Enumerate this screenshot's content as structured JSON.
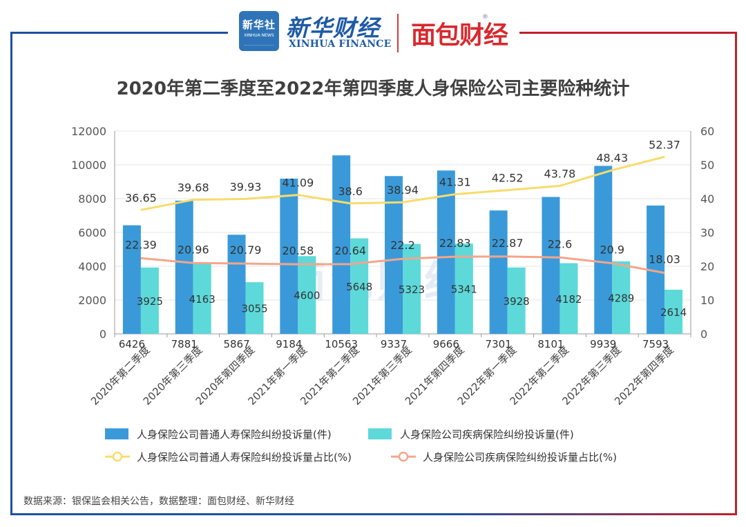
{
  "header": {
    "xinhua_badge_cn": "新华社",
    "xinhua_badge_en": "XINHUA NEWS",
    "xinhua_finance_cn": "新华财经",
    "xinhua_finance_en": "XINHUA FINANCE",
    "mianbao_logo": "面包财经",
    "registered_mark": "®"
  },
  "watermark": "面包财经",
  "source": "数据来源：银保监会相关公告，数据整理：面包财经、新华财经",
  "colors": {
    "bar_life": "#3a9ad9",
    "bar_disease": "#5dd9da",
    "line_life": "#f7dc6b",
    "line_disease": "#f4a58a",
    "frame_left": "#1e4fa2",
    "frame_right": "#c0202a",
    "grid": "#e4e4e4"
  },
  "chart_data": {
    "type": "bar+line",
    "title": "2020年第二季度至2022年第四季度人身保险公司主要险种统计",
    "categories": [
      "2020年第二季度",
      "2020年第三季度",
      "2020年第四季度",
      "2021年第一季度",
      "2021年第二季度",
      "2021年第三季度",
      "2021年第四季度",
      "2022年第一季度",
      "2022年第二季度",
      "2022年第三季度",
      "2022年第四季度"
    ],
    "y_left": {
      "min": 0,
      "max": 12000,
      "ticks": [
        0,
        2000,
        4000,
        6000,
        8000,
        10000,
        12000
      ]
    },
    "y_right": {
      "min": 0,
      "max": 60,
      "ticks": [
        0,
        10,
        20,
        30,
        40,
        50,
        60
      ]
    },
    "series": [
      {
        "name": "人身保险公司普通人寿保险纠纷投诉量(件)",
        "type": "bar",
        "axis": "left",
        "values": [
          6426,
          7881,
          5867,
          9184,
          10563,
          9337,
          9666,
          7301,
          8101,
          9939,
          7593
        ]
      },
      {
        "name": "人身保险公司疾病保险纠纷投诉量(件)",
        "type": "bar",
        "axis": "left",
        "values": [
          3925,
          4163,
          3055,
          4600,
          5648,
          5323,
          5341,
          3928,
          4182,
          4289,
          2614
        ]
      },
      {
        "name": "人身保险公司普通人寿保险纠纷投诉量占比(%)",
        "type": "line",
        "axis": "right",
        "values": [
          36.65,
          39.68,
          39.93,
          41.09,
          38.6,
          38.94,
          41.31,
          42.52,
          43.78,
          48.43,
          52.37
        ]
      },
      {
        "name": "人身保险公司疾病保险纠纷投诉量占比(%)",
        "type": "line",
        "axis": "right",
        "values": [
          22.39,
          20.96,
          20.79,
          20.58,
          20.64,
          22.2,
          22.83,
          22.87,
          22.6,
          20.9,
          18.03
        ]
      }
    ],
    "legend_position": "bottom"
  }
}
